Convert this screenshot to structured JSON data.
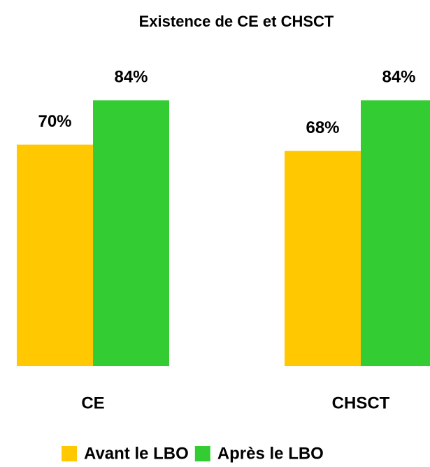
{
  "chart_data": {
    "type": "bar",
    "title": "Existence de CE et CHSCT",
    "categories": [
      "CE",
      "CHSCT"
    ],
    "series": [
      {
        "name": "Avant le LBO",
        "color": "#ffc800",
        "values": [
          70,
          68
        ],
        "value_labels": [
          "70%",
          "68%"
        ]
      },
      {
        "name": "Après le LBO",
        "color": "#33cc33",
        "values": [
          84,
          84
        ],
        "value_labels": [
          "84%",
          "84%"
        ]
      }
    ],
    "legend": "bottom"
  }
}
